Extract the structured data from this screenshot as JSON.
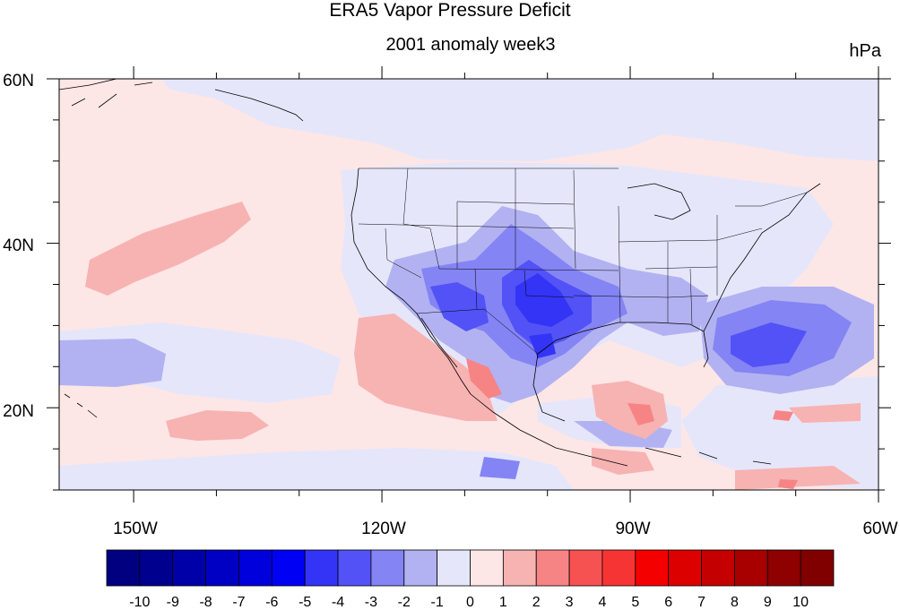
{
  "figure": {
    "title": "ERA5 Vapor Pressure Deficit",
    "subtitle": "2001 anomaly week3",
    "units": "hPa"
  },
  "map": {
    "projection": "cylindrical equidistant",
    "lon_range": [
      -159,
      -60
    ],
    "lat_range": [
      10,
      60
    ],
    "x_ticks": [
      "150W",
      "120W",
      "90W",
      "60W"
    ],
    "y_ticks": [
      "60N",
      "40N",
      "20N"
    ],
    "variable": "vapor pressure deficit anomaly",
    "features": [
      "coastlines",
      "US state boundaries",
      "filled contours"
    ]
  },
  "colorbar": {
    "labels": [
      "-10",
      "-9",
      "-8",
      "-7",
      "-6",
      "-5",
      "-4",
      "-3",
      "-2",
      "-1",
      "0",
      "1",
      "2",
      "3",
      "4",
      "5",
      "6",
      "7",
      "8",
      "9",
      "10"
    ],
    "colors": [
      "#000080",
      "#00008f",
      "#0000a8",
      "#0000c4",
      "#0000dd",
      "#0000f5",
      "#3434f6",
      "#5252f7",
      "#8484f4",
      "#b2b2f2",
      "#e6e6fb",
      "#fde6e6",
      "#f7b2b2",
      "#f78484",
      "#f75252",
      "#f73434",
      "#f50000",
      "#dd0000",
      "#c40000",
      "#a80000",
      "#8f0000",
      "#800000"
    ]
  }
}
